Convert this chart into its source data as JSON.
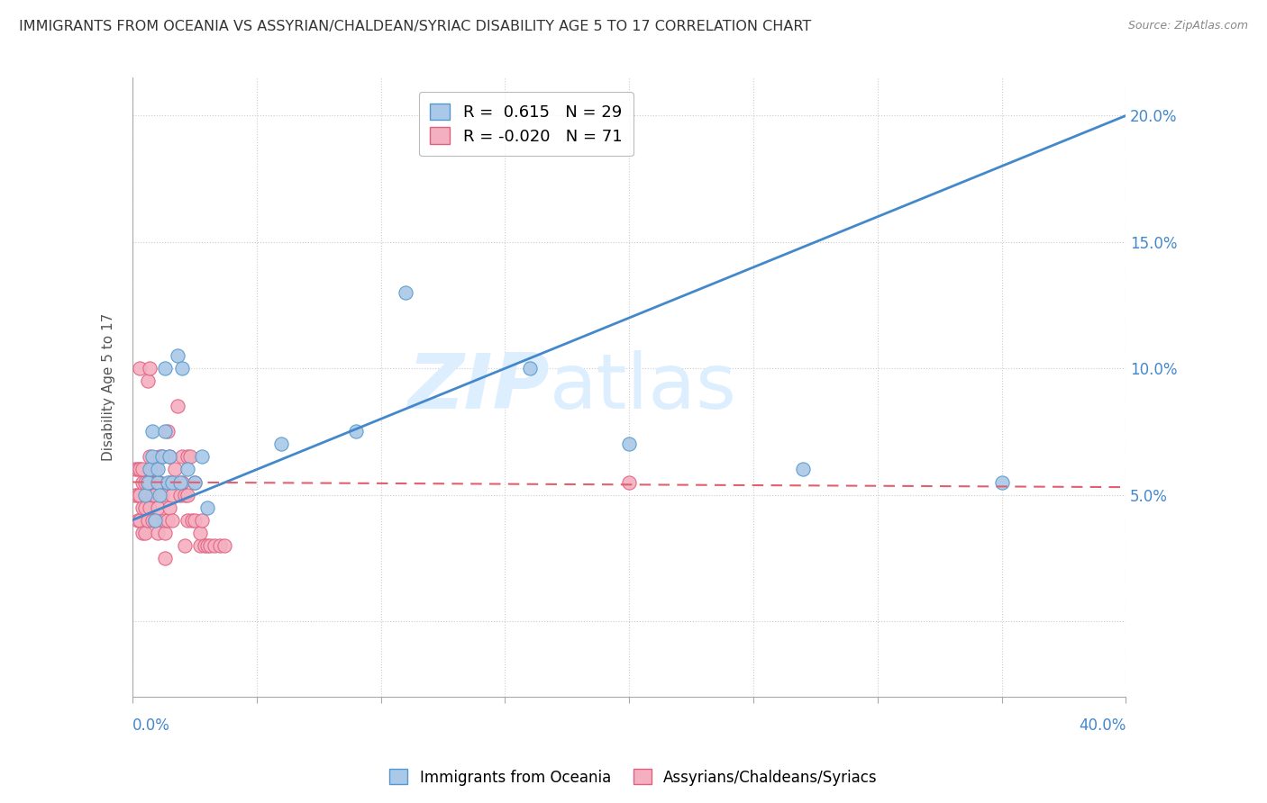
{
  "title": "IMMIGRANTS FROM OCEANIA VS ASSYRIAN/CHALDEAN/SYRIAC DISABILITY AGE 5 TO 17 CORRELATION CHART",
  "source": "Source: ZipAtlas.com",
  "ylabel": "Disability Age 5 to 17",
  "blue_label": "Immigrants from Oceania",
  "pink_label": "Assyrians/Chaldeans/Syriacs",
  "blue_R": 0.615,
  "blue_N": 29,
  "pink_R": -0.02,
  "pink_N": 71,
  "xlim": [
    0.0,
    0.4
  ],
  "ylim": [
    -0.03,
    0.215
  ],
  "yticks": [
    0.0,
    0.05,
    0.1,
    0.15,
    0.2
  ],
  "ytick_labels": [
    "",
    "5.0%",
    "10.0%",
    "15.0%",
    "20.0%"
  ],
  "blue_scatter_x": [
    0.005,
    0.006,
    0.007,
    0.008,
    0.008,
    0.009,
    0.01,
    0.01,
    0.011,
    0.012,
    0.013,
    0.013,
    0.014,
    0.015,
    0.016,
    0.018,
    0.019,
    0.02,
    0.022,
    0.025,
    0.028,
    0.03,
    0.06,
    0.09,
    0.11,
    0.16,
    0.2,
    0.27,
    0.35
  ],
  "blue_scatter_y": [
    0.05,
    0.055,
    0.06,
    0.065,
    0.075,
    0.04,
    0.055,
    0.06,
    0.05,
    0.065,
    0.075,
    0.1,
    0.055,
    0.065,
    0.055,
    0.105,
    0.055,
    0.1,
    0.06,
    0.055,
    0.065,
    0.045,
    0.07,
    0.075,
    0.13,
    0.1,
    0.07,
    0.06,
    0.055
  ],
  "pink_scatter_x": [
    0.001,
    0.001,
    0.002,
    0.002,
    0.002,
    0.003,
    0.003,
    0.003,
    0.003,
    0.004,
    0.004,
    0.004,
    0.004,
    0.005,
    0.005,
    0.005,
    0.006,
    0.006,
    0.006,
    0.006,
    0.007,
    0.007,
    0.007,
    0.007,
    0.008,
    0.008,
    0.008,
    0.009,
    0.009,
    0.009,
    0.01,
    0.01,
    0.01,
    0.011,
    0.011,
    0.012,
    0.012,
    0.013,
    0.013,
    0.013,
    0.014,
    0.014,
    0.015,
    0.015,
    0.015,
    0.016,
    0.016,
    0.017,
    0.018,
    0.019,
    0.02,
    0.02,
    0.021,
    0.021,
    0.022,
    0.022,
    0.022,
    0.023,
    0.024,
    0.025,
    0.025,
    0.027,
    0.027,
    0.028,
    0.029,
    0.03,
    0.031,
    0.033,
    0.035,
    0.037,
    0.2
  ],
  "pink_scatter_y": [
    0.05,
    0.06,
    0.04,
    0.05,
    0.06,
    0.04,
    0.05,
    0.06,
    0.1,
    0.035,
    0.045,
    0.055,
    0.06,
    0.035,
    0.045,
    0.055,
    0.04,
    0.05,
    0.055,
    0.095,
    0.045,
    0.055,
    0.065,
    0.1,
    0.04,
    0.05,
    0.06,
    0.04,
    0.05,
    0.06,
    0.035,
    0.045,
    0.055,
    0.055,
    0.065,
    0.05,
    0.065,
    0.025,
    0.035,
    0.04,
    0.04,
    0.075,
    0.045,
    0.055,
    0.065,
    0.04,
    0.05,
    0.06,
    0.085,
    0.05,
    0.055,
    0.065,
    0.03,
    0.05,
    0.04,
    0.05,
    0.065,
    0.065,
    0.04,
    0.04,
    0.055,
    0.03,
    0.035,
    0.04,
    0.03,
    0.03,
    0.03,
    0.03,
    0.03,
    0.03,
    0.055
  ],
  "background_color": "#ffffff",
  "blue_color": "#aac8e8",
  "pink_color": "#f4b0c0",
  "blue_edge_color": "#5599cc",
  "pink_edge_color": "#e06080",
  "blue_line_color": "#4488cc",
  "pink_line_color": "#e06070",
  "grid_color": "#cccccc",
  "watermark_color": "#ddeeff",
  "legend_box_color": "#e8f0f8"
}
